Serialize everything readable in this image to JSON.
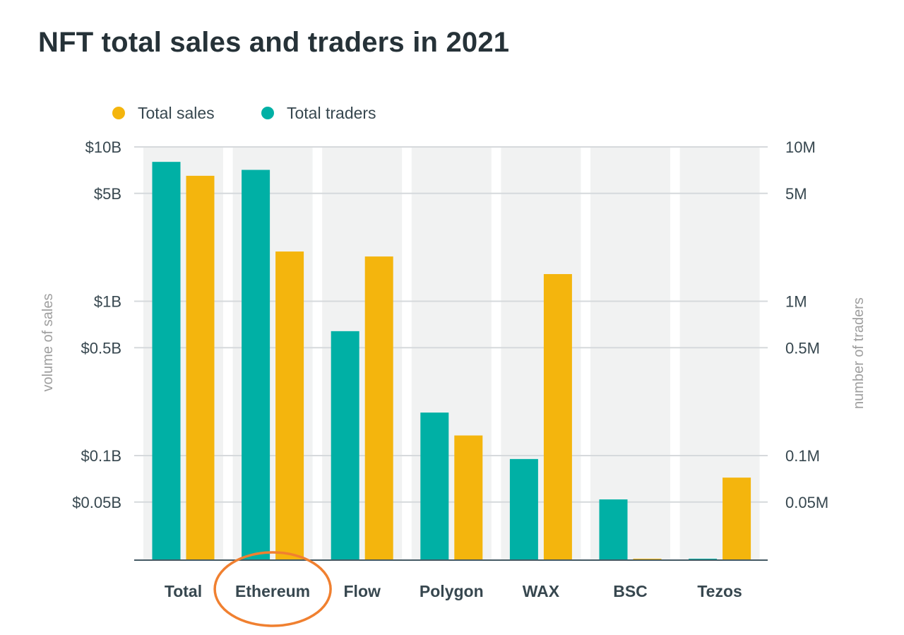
{
  "chart_data": {
    "type": "bar",
    "title": "NFT total sales and traders in 2021",
    "categories": [
      "Total",
      "Ethereum",
      "Flow",
      "Polygon",
      "WAX",
      "BSC",
      "Tezos"
    ],
    "series": [
      {
        "name": "Total traders",
        "axis": "right",
        "color": "#00b0a5",
        "values": [
          8000000,
          7100000,
          640000,
          190000,
          95000,
          52000,
          20500
        ]
      },
      {
        "name": "Total sales",
        "axis": "left",
        "color": "#f4b50d",
        "values": [
          6500000000,
          2100000000,
          1950000000,
          135000000,
          1500000000,
          20500000,
          72000000
        ]
      }
    ],
    "left_axis": {
      "label": "volume of sales",
      "scale": "log",
      "min": 20000000,
      "max": 10000000000,
      "ticks": [
        {
          "value": 10000000000,
          "label": "$10B"
        },
        {
          "value": 5000000000,
          "label": "$5B"
        },
        {
          "value": 1000000000,
          "label": "$1B"
        },
        {
          "value": 500000000,
          "label": "$0.5B"
        },
        {
          "value": 100000000,
          "label": "$0.1B"
        },
        {
          "value": 50000000,
          "label": "$0.05B"
        }
      ]
    },
    "right_axis": {
      "label": "number of traders",
      "scale": "log",
      "min": 20000,
      "max": 10000000,
      "ticks": [
        {
          "value": 10000000,
          "label": "10M"
        },
        {
          "value": 5000000,
          "label": "5M"
        },
        {
          "value": 1000000,
          "label": "1M"
        },
        {
          "value": 500000,
          "label": "0.5M"
        },
        {
          "value": 100000,
          "label": "0.1M"
        },
        {
          "value": 50000,
          "label": "0.05M"
        }
      ]
    },
    "grid": true,
    "legend_position": "top-left",
    "highlight": {
      "category": "Ethereum",
      "color": "#f08030",
      "shape": "circle"
    }
  }
}
